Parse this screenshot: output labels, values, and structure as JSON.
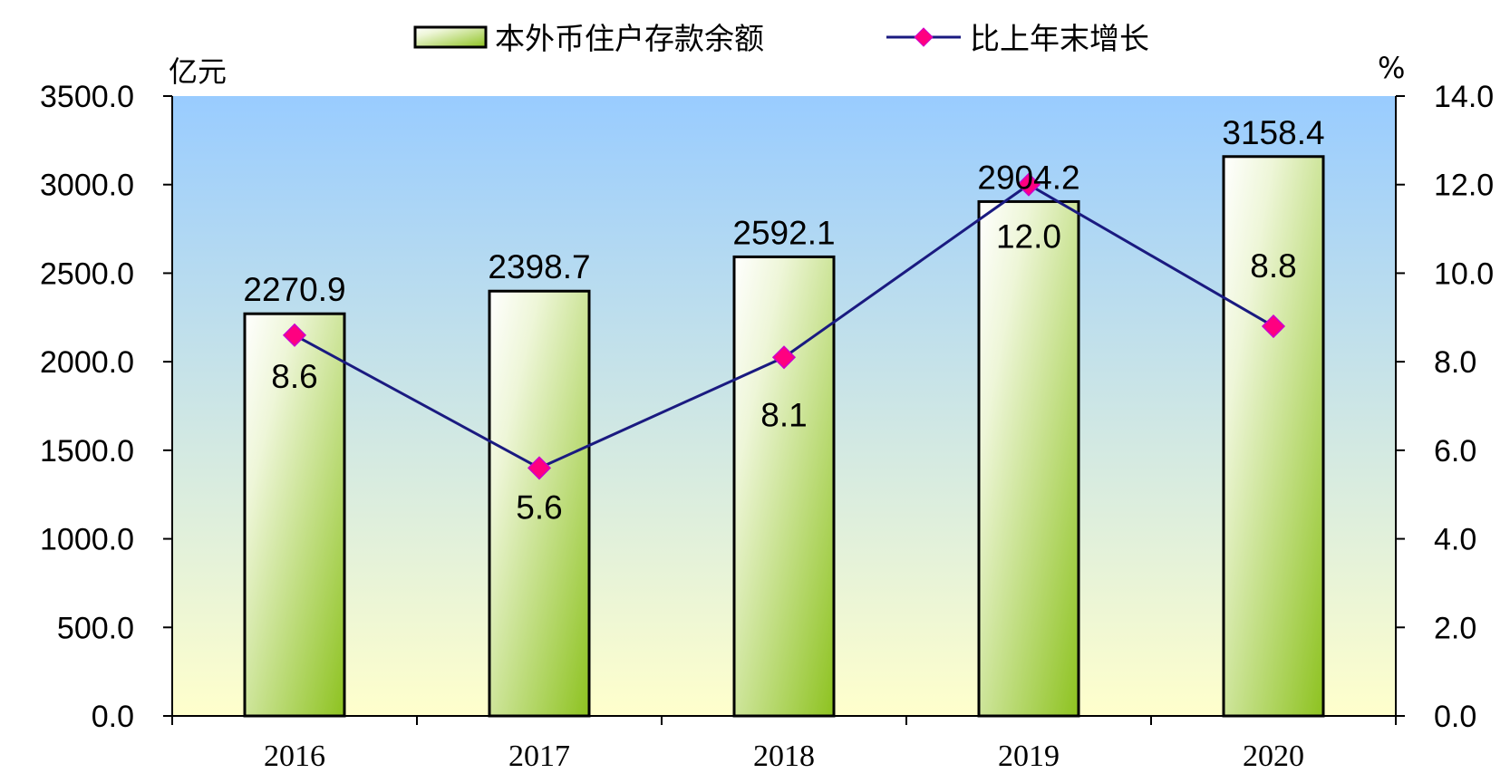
{
  "chart_data": {
    "type": "bar",
    "categories": [
      "2016",
      "2017",
      "2018",
      "2019",
      "2020"
    ],
    "series": [
      {
        "name": "本外币住户存款余额",
        "type": "bar",
        "axis": "left",
        "values": [
          2270.9,
          2398.7,
          2592.1,
          2904.2,
          3158.4
        ],
        "labels": [
          "2270.9",
          "2398.7",
          "2592.1",
          "2904.2",
          "3158.4"
        ],
        "color": "#8dc21f"
      },
      {
        "name": "比上年末增长",
        "type": "line",
        "axis": "right",
        "values": [
          8.6,
          5.6,
          8.1,
          12.0,
          8.8
        ],
        "labels": [
          "8.6",
          "5.6",
          "8.1",
          "12.0",
          "8.8"
        ],
        "color": "#1a1a80",
        "marker_color": "#ff0080"
      }
    ],
    "y_left": {
      "unit": "亿元",
      "ylim": [
        0,
        3500
      ],
      "ticks": [
        "0.0",
        "500.0",
        "1000.0",
        "1500.0",
        "2000.0",
        "2500.0",
        "3000.0",
        "3500.0"
      ]
    },
    "y_right": {
      "unit": "%",
      "ylim": [
        0,
        14
      ],
      "ticks": [
        "0.0",
        "2.0",
        "4.0",
        "6.0",
        "8.0",
        "10.0",
        "12.0",
        "14.0"
      ]
    },
    "legend": {
      "placement": "top-center"
    },
    "grid": false,
    "background": {
      "top": "#99ccff",
      "bottom": "#ffffcc"
    }
  }
}
